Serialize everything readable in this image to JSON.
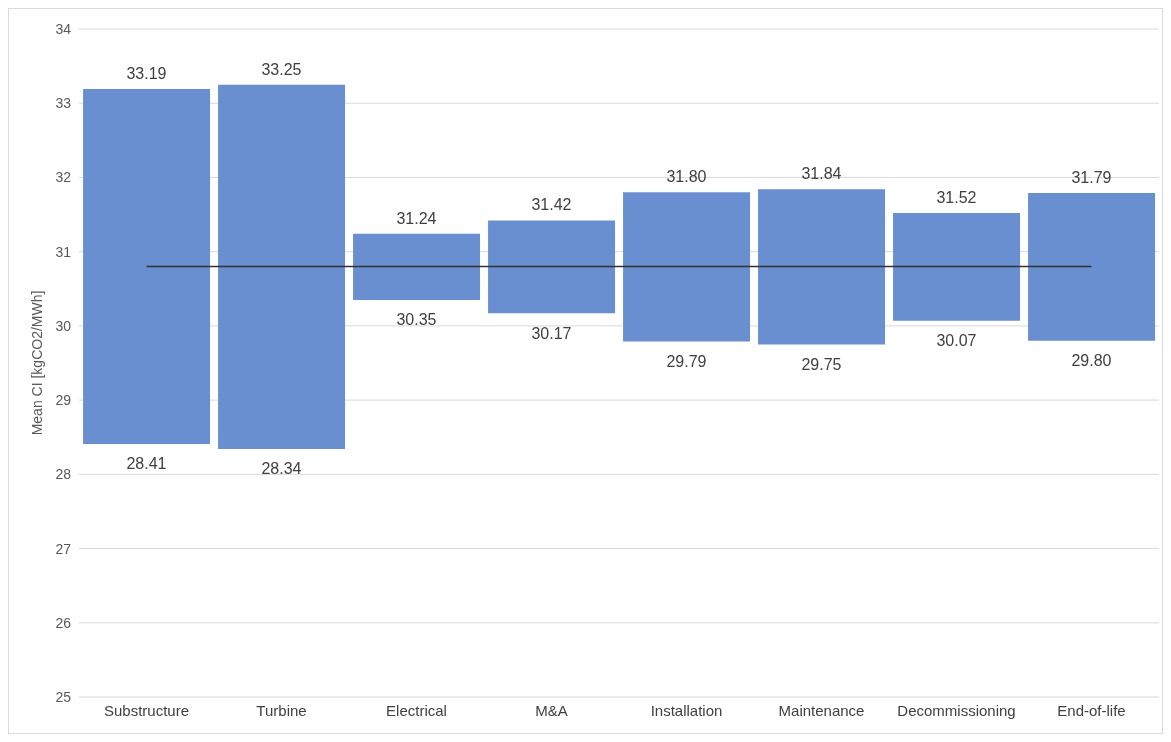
{
  "chart_data": {
    "type": "bar",
    "ylabel": "Mean CI [kgCO2/MWh]",
    "categories": [
      "Substructure",
      "Turbine",
      "Electrical",
      "M&A",
      "Installation",
      "Maintenance",
      "Decommissioning",
      "End-of-life"
    ],
    "base": [
      28.41,
      28.34,
      30.35,
      30.17,
      29.79,
      29.75,
      30.07,
      29.8
    ],
    "values": [
      4.78,
      4.91,
      0.89,
      1.25,
      2.01,
      2.09,
      1.45,
      1.99
    ],
    "color": "#6a8fd0",
    "ylim": [
      25,
      34
    ],
    "yticks": [
      25,
      26,
      27,
      28,
      29,
      30,
      31,
      32,
      33,
      34
    ],
    "grid": "y",
    "ref_lines": [
      {
        "axis": "y",
        "value": 30.8,
        "color": "#333333"
      }
    ],
    "annotations": [
      {
        "text": "33.19",
        "x": "Substructure",
        "y": 33.19
      },
      {
        "text": "28.41",
        "x": "Substructure",
        "y": 28.41
      },
      {
        "text": "33.25",
        "x": "Turbine",
        "y": 33.25
      },
      {
        "text": "28.34",
        "x": "Turbine",
        "y": 28.34
      },
      {
        "text": "31.24",
        "x": "Electrical",
        "y": 31.24
      },
      {
        "text": "30.35",
        "x": "Electrical",
        "y": 30.35
      },
      {
        "text": "31.42",
        "x": "M&A",
        "y": 31.42
      },
      {
        "text": "30.17",
        "x": "M&A",
        "y": 30.17
      },
      {
        "text": "31.80",
        "x": "Installation",
        "y": 31.8
      },
      {
        "text": "29.79",
        "x": "Installation",
        "y": 29.79
      },
      {
        "text": "31.84",
        "x": "Maintenance",
        "y": 31.84
      },
      {
        "text": "29.75",
        "x": "Maintenance",
        "y": 29.75
      },
      {
        "text": "31.52",
        "x": "Decommissioning",
        "y": 31.52
      },
      {
        "text": "30.07",
        "x": "Decommissioning",
        "y": 30.07
      },
      {
        "text": "31.79",
        "x": "End-of-life",
        "y": 31.79
      },
      {
        "text": "29.80",
        "x": "End-of-life",
        "y": 29.8
      }
    ]
  }
}
